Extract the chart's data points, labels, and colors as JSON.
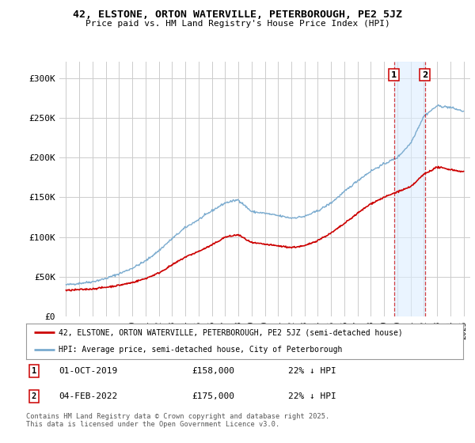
{
  "title_line1": "42, ELSTONE, ORTON WATERVILLE, PETERBOROUGH, PE2 5JZ",
  "title_line2": "Price paid vs. HM Land Registry's House Price Index (HPI)",
  "background_color": "#ffffff",
  "plot_bg_color": "#ffffff",
  "grid_color": "#cccccc",
  "red_color": "#cc0000",
  "blue_color": "#7aabcf",
  "marker1_date_x": 2019.75,
  "marker2_date_x": 2022.09,
  "marker1_label": "01-OCT-2019",
  "marker1_price": "£158,000",
  "marker1_hpi": "22% ↓ HPI",
  "marker2_label": "04-FEB-2022",
  "marker2_price": "£175,000",
  "marker2_hpi": "22% ↓ HPI",
  "legend_entry1": "42, ELSTONE, ORTON WATERVILLE, PETERBOROUGH, PE2 5JZ (semi-detached house)",
  "legend_entry2": "HPI: Average price, semi-detached house, City of Peterborough",
  "footer": "Contains HM Land Registry data © Crown copyright and database right 2025.\nThis data is licensed under the Open Government Licence v3.0.",
  "ylim_min": 0,
  "ylim_max": 320000,
  "xlim_min": 1994.5,
  "xlim_max": 2025.5,
  "yticks": [
    0,
    50000,
    100000,
    150000,
    200000,
    250000,
    300000
  ],
  "ytick_labels": [
    "£0",
    "£50K",
    "£100K",
    "£150K",
    "£200K",
    "£250K",
    "£300K"
  ]
}
